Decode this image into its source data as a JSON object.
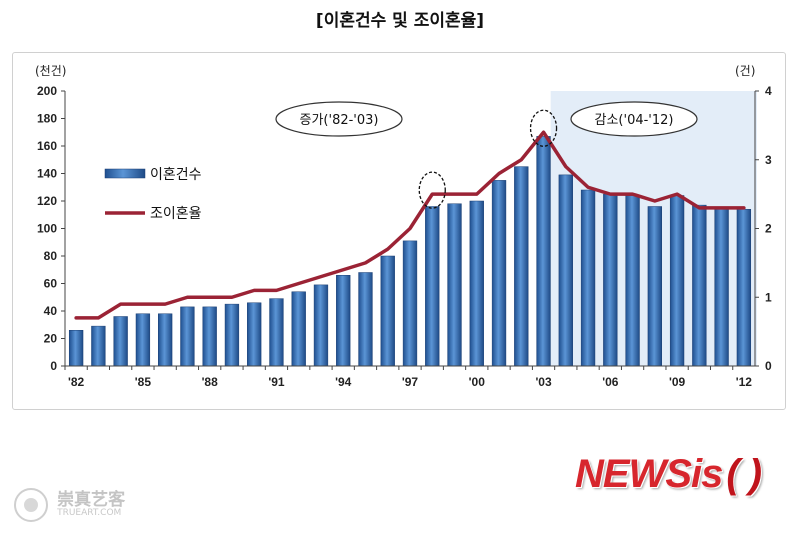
{
  "title": "[이혼건수 및 조이혼율]",
  "chart_data": {
    "type": "bar+line",
    "title": "[이혼건수 및 조이혼율]",
    "left_axis": {
      "unit_label": "(천건)",
      "ylim": [
        0,
        200
      ],
      "ticks": [
        0,
        20,
        40,
        60,
        80,
        100,
        120,
        140,
        160,
        180,
        200
      ]
    },
    "right_axis": {
      "unit_label": "(건)",
      "ylim": [
        0,
        4
      ],
      "ticks": [
        0,
        1,
        2,
        3,
        4
      ]
    },
    "x": [
      1982,
      1983,
      1984,
      1985,
      1986,
      1987,
      1988,
      1989,
      1990,
      1991,
      1992,
      1993,
      1994,
      1995,
      1996,
      1997,
      1998,
      1999,
      2000,
      2001,
      2002,
      2003,
      2004,
      2005,
      2006,
      2007,
      2008,
      2009,
      2010,
      2011,
      2012
    ],
    "x_tick_labels": [
      {
        "year": 1982,
        "label": "'82"
      },
      {
        "year": 1985,
        "label": "'85"
      },
      {
        "year": 1988,
        "label": "'88"
      },
      {
        "year": 1991,
        "label": "'91"
      },
      {
        "year": 1994,
        "label": "'94"
      },
      {
        "year": 1997,
        "label": "'97"
      },
      {
        "year": 2000,
        "label": "'00"
      },
      {
        "year": 2003,
        "label": "'03"
      },
      {
        "year": 2006,
        "label": "'06"
      },
      {
        "year": 2009,
        "label": "'09"
      },
      {
        "year": 2012,
        "label": "'12"
      }
    ],
    "series": [
      {
        "name": "이혼건수",
        "kind": "bar",
        "axis": "left",
        "color": "#2e6fb8",
        "values": [
          26,
          29,
          36,
          38,
          38,
          43,
          43,
          45,
          46,
          49,
          54,
          59,
          66,
          68,
          80,
          91,
          116,
          118,
          120,
          135,
          145,
          167,
          139,
          128,
          125,
          124,
          116,
          124,
          117,
          114,
          114
        ]
      },
      {
        "name": "조이혼율",
        "kind": "line",
        "axis": "right",
        "color": "#9b2335",
        "values": [
          0.7,
          0.7,
          0.9,
          0.9,
          0.9,
          1.0,
          1.0,
          1.0,
          1.1,
          1.1,
          1.2,
          1.3,
          1.4,
          1.5,
          1.7,
          2.0,
          2.5,
          2.5,
          2.5,
          2.8,
          3.0,
          3.4,
          2.9,
          2.6,
          2.5,
          2.5,
          2.4,
          2.5,
          2.3,
          2.3,
          2.3
        ]
      }
    ],
    "annotations": [
      {
        "text": "증가('82-'03)",
        "type": "ellipse-label"
      },
      {
        "text": "감소('04-'12)",
        "type": "ellipse-label",
        "shaded_from": 2004,
        "shaded_to": 2012,
        "shade_color": "#e3edf8"
      }
    ],
    "highlights": [
      1998,
      2003
    ],
    "legend": {
      "placement": "left",
      "entries": [
        "이혼건수",
        "조이혼율"
      ]
    }
  },
  "logo": {
    "main": "NEWS",
    "lower": "is",
    "paren": "( )"
  },
  "watermark": {
    "main": "崇真艺客",
    "sub": "TRUEART.COM"
  }
}
